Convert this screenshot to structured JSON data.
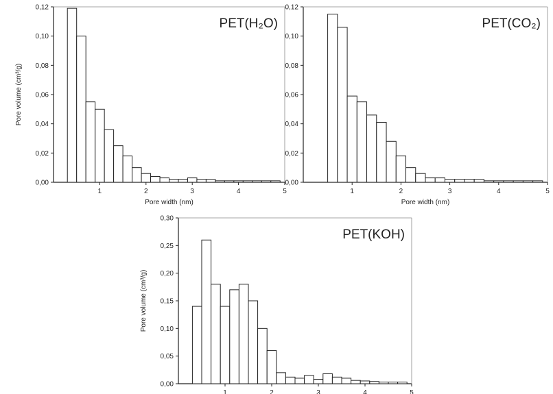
{
  "chart_data": [
    {
      "type": "bar",
      "title": "PET(H₂O)",
      "xlabel": "Pore width (nm)",
      "ylabel": "Pore volume (cm³/g)",
      "xlim": [
        0,
        5
      ],
      "ylim": [
        0,
        0.12
      ],
      "xticks": [
        1,
        2,
        3,
        4,
        5
      ],
      "yticks": [
        0,
        0.02,
        0.04,
        0.06,
        0.08,
        0.1,
        0.12
      ],
      "ytick_labels": [
        "0,00",
        "0,02",
        "0,04",
        "0,06",
        "0,08",
        "0,10",
        "0,12"
      ],
      "bin_width": 0.2,
      "x": [
        0.4,
        0.6,
        0.8,
        1.0,
        1.2,
        1.4,
        1.6,
        1.8,
        2.0,
        2.2,
        2.4,
        2.6,
        2.8,
        3.0,
        3.2,
        3.4,
        3.6,
        3.8,
        4.0,
        4.2,
        4.4,
        4.6,
        4.8
      ],
      "values": [
        0.119,
        0.1,
        0.055,
        0.05,
        0.036,
        0.025,
        0.018,
        0.01,
        0.006,
        0.004,
        0.003,
        0.002,
        0.002,
        0.003,
        0.002,
        0.002,
        0.001,
        0.001,
        0.001,
        0.001,
        0.001,
        0.001,
        0.001
      ],
      "grid": false,
      "legend": "none"
    },
    {
      "type": "bar",
      "title": "PET(CO₂)",
      "xlabel": "Pore width (nm)",
      "ylabel": "",
      "xlim": [
        0,
        5
      ],
      "ylim": [
        0,
        0.12
      ],
      "xticks": [
        1,
        2,
        3,
        4,
        5
      ],
      "yticks": [
        0,
        0.02,
        0.04,
        0.06,
        0.08,
        0.1,
        0.12
      ],
      "ytick_labels": [
        "0,00",
        "0,02",
        "0,04",
        "0,06",
        "0,08",
        "0,10",
        "0,12"
      ],
      "bin_width": 0.2,
      "x": [
        0.6,
        0.8,
        1.0,
        1.2,
        1.4,
        1.6,
        1.8,
        2.0,
        2.2,
        2.4,
        2.6,
        2.8,
        3.0,
        3.2,
        3.4,
        3.6,
        3.8,
        4.0,
        4.2,
        4.4,
        4.6,
        4.8
      ],
      "values": [
        0.115,
        0.106,
        0.059,
        0.055,
        0.046,
        0.041,
        0.028,
        0.018,
        0.01,
        0.006,
        0.003,
        0.003,
        0.002,
        0.002,
        0.002,
        0.002,
        0.001,
        0.001,
        0.001,
        0.001,
        0.001,
        0.001
      ],
      "grid": false,
      "legend": "none"
    },
    {
      "type": "bar",
      "title": "PET(KOH)",
      "xlabel": "",
      "ylabel": "Pore volume (cm³/g)",
      "xlim": [
        0,
        5
      ],
      "ylim": [
        0,
        0.3
      ],
      "xticks": [
        1,
        2,
        3,
        4,
        5
      ],
      "yticks": [
        0,
        0.05,
        0.1,
        0.15,
        0.2,
        0.25,
        0.3
      ],
      "ytick_labels": [
        "0,00",
        "0,05",
        "0,10",
        "0,15",
        "0,20",
        "0,25",
        "0,30"
      ],
      "bin_width": 0.2,
      "x": [
        0.4,
        0.6,
        0.8,
        1.0,
        1.2,
        1.4,
        1.6,
        1.8,
        2.0,
        2.2,
        2.4,
        2.6,
        2.8,
        3.0,
        3.2,
        3.4,
        3.6,
        3.8,
        4.0,
        4.2,
        4.4,
        4.6,
        4.8
      ],
      "values": [
        0.14,
        0.26,
        0.18,
        0.14,
        0.17,
        0.18,
        0.15,
        0.1,
        0.06,
        0.02,
        0.012,
        0.01,
        0.015,
        0.008,
        0.018,
        0.012,
        0.01,
        0.006,
        0.005,
        0.004,
        0.003,
        0.003,
        0.003
      ],
      "grid": false,
      "legend": "none"
    }
  ]
}
